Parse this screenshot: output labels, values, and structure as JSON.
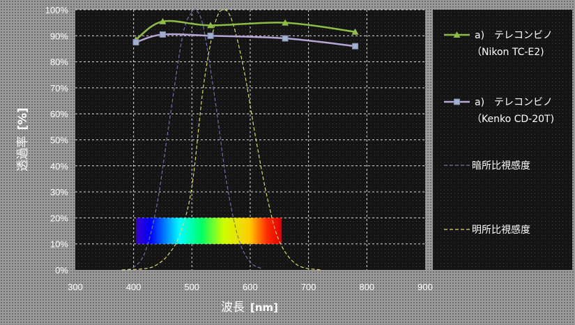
{
  "chart_data": {
    "type": "line",
    "xlabel": "波長",
    "xunit": "[nm]",
    "ylabel": "透過率",
    "yunit": "[%]",
    "xlim": [
      300,
      900
    ],
    "ylim": [
      0,
      100
    ],
    "x_ticks": [
      "300",
      "400",
      "500",
      "600",
      "700",
      "800",
      "900"
    ],
    "y_ticks": [
      "0%",
      "10%",
      "20%",
      "30%",
      "40%",
      "50%",
      "60%",
      "70%",
      "80%",
      "90%",
      "100%"
    ],
    "grid": true,
    "legend_position": "right",
    "series": [
      {
        "name_line1": "a)　テレコンビノ",
        "name_line2": "（Nikon TC-E2)",
        "color": "#8fbc45",
        "marker": "triangle",
        "x": [
          404,
          450,
          532,
          660,
          780
        ],
        "y": [
          88.5,
          95.5,
          94,
          95,
          91.5
        ]
      },
      {
        "name_line1": "a)　テレコンビノ",
        "name_line2": "（Kenko CD-20T)",
        "color": "#b4a7d6",
        "marker": "square",
        "x": [
          404,
          450,
          532,
          660,
          780
        ],
        "y": [
          87.5,
          90.5,
          90,
          89,
          86
        ]
      },
      {
        "name": "暗所比視感度",
        "color": "#6f6fb5",
        "style": "dashed",
        "x": [
          380,
          400,
          420,
          440,
          460,
          480,
          490,
          500,
          507,
          520,
          540,
          560,
          580,
          600,
          620
        ],
        "y": [
          0,
          1,
          7,
          25,
          55,
          85,
          95,
          99,
          100,
          93,
          65,
          33,
          12,
          3,
          0.5
        ]
      },
      {
        "name": "明所比視感度",
        "color": "#dcdc5a",
        "style": "dashed",
        "x": [
          380,
          420,
          440,
          460,
          480,
          500,
          520,
          540,
          555,
          570,
          590,
          610,
          630,
          650,
          680,
          720
        ],
        "y": [
          0,
          0.5,
          2,
          6,
          14,
          32,
          71,
          95,
          100,
          95,
          76,
          50,
          27,
          11,
          2,
          0
        ]
      }
    ],
    "spectrum_band": {
      "x_start": 404,
      "x_end": 654,
      "y_low": 10,
      "y_high": 20
    }
  }
}
